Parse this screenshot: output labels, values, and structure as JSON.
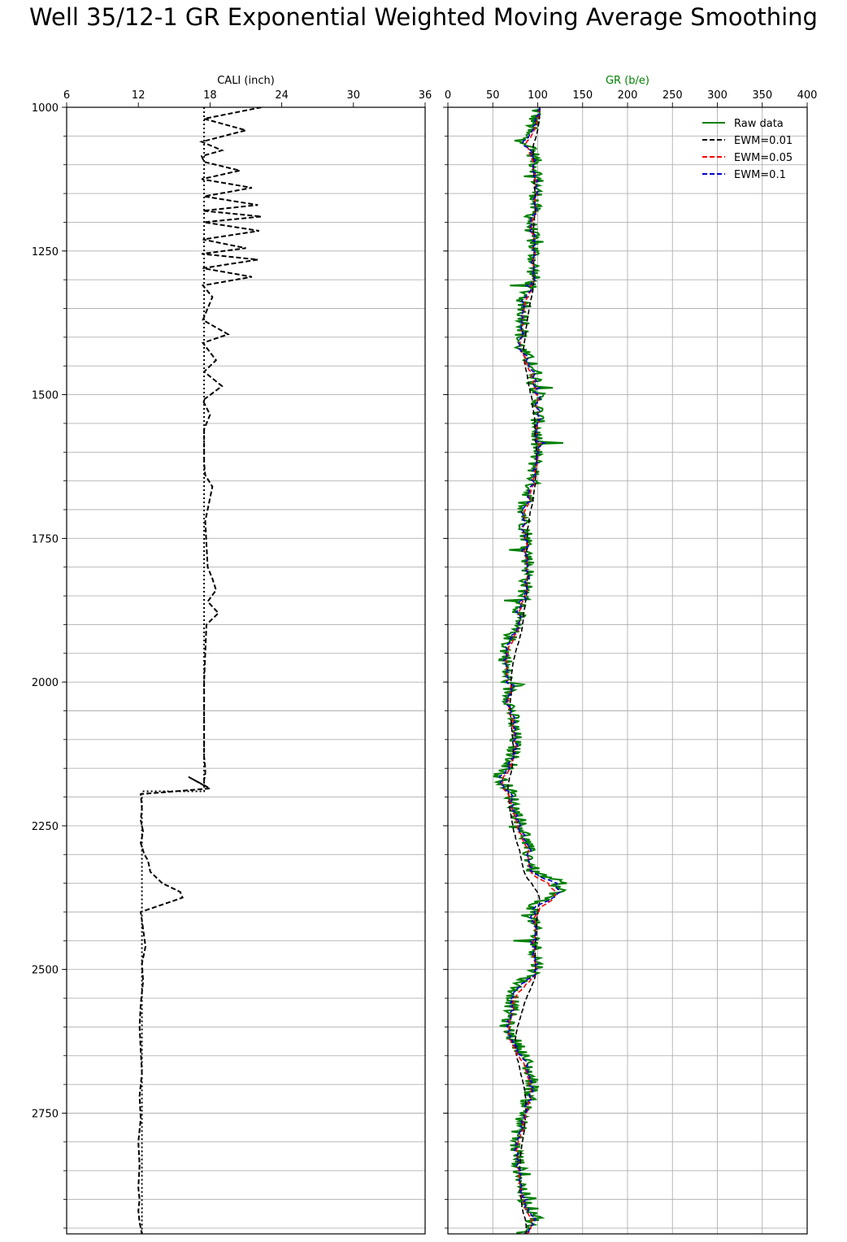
{
  "title": "Well 35/12-1 GR Exponential Weighted Moving Average Smoothing",
  "chart_data": [
    {
      "type": "line",
      "panel": "left",
      "xlabel": "CALI (inch)",
      "xlabel_color": "#000000",
      "xlim": [
        6,
        36
      ],
      "xticks": [
        6,
        12,
        18,
        24,
        30,
        36
      ],
      "ylim": [
        2960,
        1000
      ],
      "yticks": [
        1000,
        1250,
        1500,
        1750,
        2000,
        2250,
        2500,
        2750
      ],
      "grid": "horizontal every 50 m",
      "series": [
        {
          "name": "",
          "style": "dashed",
          "color": "#000000",
          "x": [
            22.3,
            17.5,
            21.0,
            17.3,
            19.0,
            17.3,
            17.5,
            20.5,
            17.3,
            21.5,
            17.5,
            22.0,
            17.4,
            22.3,
            17.5,
            22.1,
            17.4,
            21.0,
            17.3,
            22.0,
            17.4,
            21.5,
            17.4,
            18.2,
            17.4,
            19.5,
            17.4,
            18.5,
            17.5,
            19.0,
            17.4,
            18.0,
            17.5,
            17.5,
            17.6,
            18.2,
            17.6,
            17.7,
            17.8,
            18.2,
            18.5,
            17.8,
            18.7,
            17.7,
            17.6,
            17.5,
            17.5,
            17.5,
            17.5,
            17.6,
            17.6,
            17.5,
            17.5,
            16.2,
            18.0,
            12.2,
            12.3,
            12.2,
            12.4,
            12.2,
            12.5,
            12.8,
            13.0,
            14.0,
            15.5,
            15.7,
            15.0,
            12.2,
            12.4,
            12.6,
            12.3,
            12.4,
            12.2,
            12.1,
            12.2,
            12.3,
            12.1,
            12.2,
            12.0,
            12.1,
            12.0,
            12.1,
            12.0,
            12.1,
            12.3
          ],
          "y": [
            1000,
            1020,
            1040,
            1060,
            1075,
            1085,
            1095,
            1110,
            1125,
            1140,
            1155,
            1170,
            1180,
            1190,
            1200,
            1215,
            1230,
            1245,
            1255,
            1265,
            1280,
            1295,
            1310,
            1330,
            1370,
            1395,
            1410,
            1440,
            1460,
            1485,
            1510,
            1535,
            1560,
            1620,
            1640,
            1660,
            1720,
            1760,
            1800,
            1820,
            1840,
            1860,
            1880,
            1900,
            1950,
            2000,
            2050,
            2100,
            2130,
            2150,
            2160,
            2170,
            2180,
            2165,
            2185,
            2195,
            2220,
            2240,
            2260,
            2280,
            2300,
            2310,
            2330,
            2350,
            2365,
            2375,
            2380,
            2400,
            2430,
            2460,
            2490,
            2520,
            2560,
            2600,
            2640,
            2680,
            2720,
            2760,
            2800,
            2840,
            2880,
            2900,
            2920,
            2940,
            2960
          ]
        },
        {
          "name": "",
          "style": "dotted",
          "color": "#000000",
          "x": [
            17.5,
            17.5,
            12.3,
            12.3
          ],
          "y": [
            1000,
            2190,
            2190,
            2960
          ]
        }
      ]
    },
    {
      "type": "line",
      "panel": "right",
      "xlabel": "GR (b/e)",
      "xlabel_color": "#008000",
      "xlim": [
        0,
        400
      ],
      "xticks": [
        0,
        50,
        100,
        150,
        200,
        250,
        300,
        350,
        400
      ],
      "ylim": [
        2960,
        1000
      ],
      "grid": "both",
      "legend": "top-right",
      "profile": {
        "depth": [
          1000,
          1030,
          1050,
          1080,
          1120,
          1160,
          1200,
          1250,
          1300,
          1340,
          1380,
          1410,
          1440,
          1460,
          1500,
          1550,
          1600,
          1650,
          1700,
          1750,
          1800,
          1850,
          1900,
          1940,
          1980,
          2040,
          2100,
          2150,
          2160,
          2190,
          2220,
          2260,
          2300,
          2330,
          2345,
          2365,
          2385,
          2420,
          2500,
          2530,
          2570,
          2600,
          2650,
          2700,
          2750,
          2800,
          2850,
          2900,
          2930,
          2960
        ],
        "gr": [
          100,
          95,
          85,
          95,
          100,
          98,
          92,
          96,
          95,
          82,
          86,
          78,
          90,
          98,
          100,
          100,
          98,
          95,
          85,
          88,
          90,
          85,
          75,
          65,
          65,
          70,
          75,
          70,
          55,
          70,
          75,
          85,
          90,
          95,
          120,
          125,
          95,
          95,
          100,
          75,
          70,
          65,
          85,
          95,
          85,
          75,
          80,
          85,
          100,
          80
        ]
      },
      "series": [
        {
          "name": "Raw data",
          "color": "#008000",
          "style": "solid"
        },
        {
          "name": "EWM=0.01",
          "color": "#000000",
          "style": "dashed"
        },
        {
          "name": "EWM=0.05",
          "color": "#ff0000",
          "style": "dashed"
        },
        {
          "name": "EWM=0.1",
          "color": "#0000cc",
          "style": "dashed"
        }
      ]
    }
  ]
}
